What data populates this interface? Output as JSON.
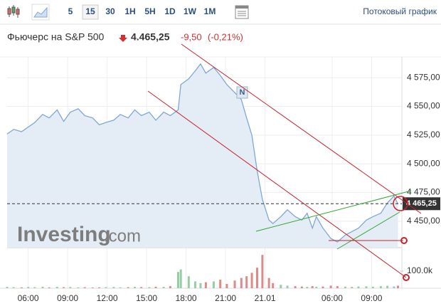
{
  "toolbar": {
    "intervals": [
      "5",
      "15",
      "30",
      "1H",
      "5H",
      "1D",
      "1W",
      "1M"
    ],
    "active_interval": "15",
    "streaming_link": "Потоковый график"
  },
  "chart_data": {
    "type": "area",
    "title": "Фьючерс на S&P 500",
    "price": "4.465,25",
    "change": "-9,50",
    "change_percent": "(-0,21%)",
    "watermark": {
      "brand": "Investing",
      "suffix": ".com"
    },
    "news_marker": "N",
    "color": "#7fa7d4",
    "fill": "#e4edf6",
    "grid": true,
    "x": [
      4.4,
      4.9,
      5.5,
      6.0,
      6.5,
      7.1,
      7.6,
      8.2,
      8.7,
      9.2,
      9.8,
      10.3,
      10.9,
      11.4,
      11.9,
      12.5,
      13.0,
      13.6,
      14.1,
      14.6,
      15.2,
      15.7,
      16.3,
      16.8,
      17.4,
      17.6,
      18.2,
      18.7,
      19.1,
      19.5,
      20.1,
      20.6,
      21.1,
      21.7,
      22.2,
      22.6,
      23.0,
      23.4,
      23.8,
      24.3,
      24.6,
      25.2,
      25.7,
      26.3,
      26.8,
      27.2,
      27.6,
      27.9,
      28.4,
      29.0,
      29.5,
      30.1,
      30.6,
      31.1,
      31.7,
      32.2,
      32.8,
      33.3,
      33.8,
      34.1
    ],
    "values": [
      4526,
      4530,
      4528,
      4532,
      4536,
      4543,
      4540,
      4547,
      4537,
      4545,
      4548,
      4542,
      4540,
      4534,
      4536,
      4538,
      4543,
      4540,
      4547,
      4542,
      4545,
      4538,
      4545,
      4542,
      4547,
      4569,
      4574,
      4581,
      4587,
      4579,
      4584,
      4577,
      4569,
      4562,
      4556,
      4540,
      4525,
      4494,
      4469,
      4451,
      4448,
      4454,
      4460,
      4454,
      4451,
      4457,
      4444,
      4454,
      4444,
      4435,
      4432,
      4438,
      4441,
      4444,
      4451,
      4454,
      4457,
      4466,
      4472,
      4465
    ],
    "xlim": [
      4.4,
      34.4
    ],
    "xticks": [
      {
        "value": 6,
        "label": "06:00"
      },
      {
        "value": 9,
        "label": "09:00"
      },
      {
        "value": 12,
        "label": "12:00"
      },
      {
        "value": 15,
        "label": "15:00"
      },
      {
        "value": 18,
        "label": "18:00"
      },
      {
        "value": 21,
        "label": "21:00"
      },
      {
        "value": 24,
        "label": "21.01"
      },
      {
        "value": 29.1,
        "label": "06:00"
      },
      {
        "value": 32.1,
        "label": "09:00"
      }
    ],
    "ylim": [
      4427,
      4590
    ],
    "yticks": [
      {
        "value": 4450,
        "label": "4 450,00"
      },
      {
        "value": 4475,
        "label": "4 475,00"
      },
      {
        "value": 4500,
        "label": "4 500,00"
      },
      {
        "value": 4525,
        "label": "4 525,00"
      },
      {
        "value": 4550,
        "label": "4 550,00"
      },
      {
        "value": 4575,
        "label": "4 575,00"
      }
    ],
    "last_price": {
      "value": 4465.25,
      "label": "4 465,25"
    },
    "volume": {
      "up_color": "#93cfa2",
      "down_color": "#dc8a8a",
      "ylim": [
        0,
        208000
      ],
      "yticks": [
        {
          "value": 100000,
          "label": "100.0k"
        }
      ],
      "values": [
        8000,
        6000,
        5000,
        7000,
        6000,
        9000,
        5000,
        8000,
        6000,
        7000,
        5000,
        6000,
        4000,
        5000,
        6000,
        7000,
        5000,
        6000,
        8000,
        7000,
        6000,
        9000,
        8000,
        12000,
        95000,
        110000,
        70000,
        40000,
        30000,
        35000,
        40000,
        50000,
        25000,
        45000,
        60000,
        70000,
        90000,
        120000,
        195000,
        60000,
        30000,
        20000,
        15000,
        12000,
        10000,
        8000,
        12000,
        9000,
        10000,
        15000,
        12000,
        9000,
        8000,
        10000,
        11000,
        9000,
        12000,
        14000,
        10000,
        15000
      ]
    }
  }
}
